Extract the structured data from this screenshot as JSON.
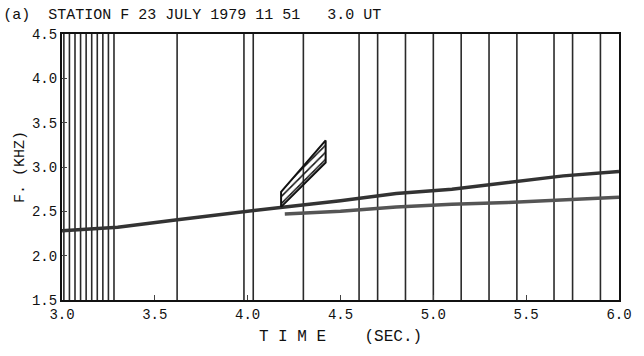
{
  "chart_data": {
    "type": "line",
    "title": "(a)  STATION F 23 JULY 1979 11 51   3.0 UT",
    "x_label": "T I M E    (SEC.)",
    "y_label": "F. (KHZ)",
    "xlim": [
      3.0,
      6.0
    ],
    "xticks": [
      {
        "value": 3.0,
        "label": "3.0"
      },
      {
        "value": 3.5,
        "label": "3.5"
      },
      {
        "value": 4.0,
        "label": "4.0"
      },
      {
        "value": 4.5,
        "label": "4.5"
      },
      {
        "value": 5.0,
        "label": "5.0"
      },
      {
        "value": 5.5,
        "label": "5.5"
      },
      {
        "value": 6.0,
        "label": "6.0"
      }
    ],
    "ylim": [
      1.5,
      4.5
    ],
    "yticks": [
      1.5,
      {
        "value": 2.0,
        "label": "2.0"
      },
      2.5,
      {
        "value": 3.0,
        "label": "3.0"
      },
      3.5,
      {
        "value": 4.0,
        "label": "4.0"
      },
      4.5
    ],
    "grid": false,
    "series": [
      {
        "type": "vline",
        "color": "#2a2a2a",
        "x": [
          3.01,
          3.04,
          3.07,
          3.1,
          3.13,
          3.16,
          3.19,
          3.22,
          3.25,
          3.28,
          3.62,
          3.98,
          4.03,
          4.3,
          4.6,
          4.7,
          4.85,
          5.0,
          5.15,
          5.3,
          5.45,
          5.65,
          5.75,
          5.9
        ]
      },
      {
        "type": "line",
        "color": "#333333",
        "x": [
          3.0,
          3.3,
          3.6,
          3.9,
          4.2,
          4.5,
          4.8,
          5.1,
          5.4,
          5.7,
          6.0
        ],
        "values": [
          2.28,
          2.32,
          2.4,
          2.48,
          2.55,
          2.62,
          2.7,
          2.75,
          2.82,
          2.9,
          2.95
        ]
      },
      {
        "type": "line",
        "color": "#555555",
        "x": [
          4.2,
          4.5,
          4.8,
          5.1,
          5.4,
          5.7,
          6.0
        ],
        "values": [
          2.47,
          2.5,
          2.55,
          2.58,
          2.6,
          2.63,
          2.66
        ]
      },
      {
        "type": "polygon",
        "color": "#111111",
        "x": [
          4.18,
          4.42,
          4.42,
          4.18,
          4.18
        ],
        "values": [
          2.55,
          3.05,
          3.3,
          2.72,
          2.55
        ]
      }
    ]
  }
}
